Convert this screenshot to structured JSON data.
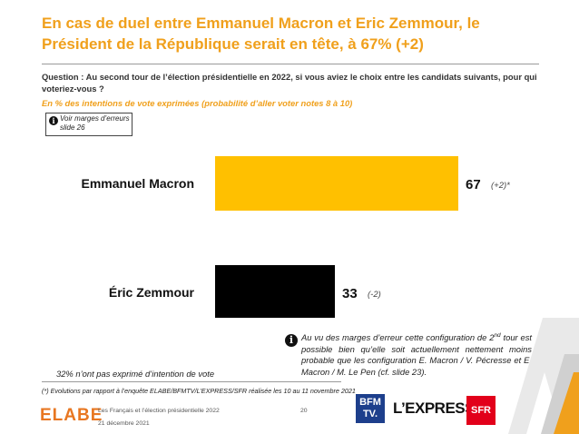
{
  "header": {
    "title": "En cas de duel entre Emmanuel Macron et Eric Zemmour, le Président de la République serait en tête, à 67% (+2)",
    "question": "Question : Au second tour de l’élection présidentielle en 2022, si vous aviez le choix entre les candidats suivants, pour qui voteriez-vous ?",
    "subtitle": "En % des intentions de vote exprimées (probabilité d’aller voter notes 8 à 10)"
  },
  "note_box": {
    "text": "Voir marges d’erreurs slide 26"
  },
  "chart_data": {
    "type": "bar",
    "orientation": "horizontal",
    "categories": [
      "Emmanuel Macron",
      "Éric Zemmour"
    ],
    "values": [
      67,
      33
    ],
    "value_labels": [
      "67",
      "33"
    ],
    "changes": [
      "(+2)*",
      "(-2)"
    ],
    "colors": [
      "#ffc000",
      "#000000"
    ],
    "xlim": [
      0,
      100
    ],
    "grid": false,
    "legend": "none"
  },
  "callout": {
    "text_before": "Au vu des marges d’erreur cette configuration de 2",
    "superscript": "nd",
    "text_after": " tour est possible bien qu’elle soit actuellement nettement moins probable que les configuration E. Macron / V. Pécresse et E. Macron / M. Le Pen (cf. slide 23)."
  },
  "abstention_note": "32% n’ont pas exprimé d’intention de vote",
  "footnote": "(*) Evolutions par rapport à l’enquête ELABE/BFMTV/L’EXPRESS/SFR réalisée les 10 au 11 novembre 2021",
  "footer": {
    "brand": "ELABE",
    "study": "Les Français et l’élection présidentielle 2022",
    "date": "21 décembre 2021",
    "page": "20",
    "partners": {
      "bfm_line1": "BFM",
      "bfm_line2": "TV.",
      "express": "L’EXPRESS",
      "sfr": "SFR"
    }
  },
  "colors": {
    "accent": "#f0a01c",
    "macron_bar": "#ffc000",
    "zemmour_bar": "#000000"
  }
}
